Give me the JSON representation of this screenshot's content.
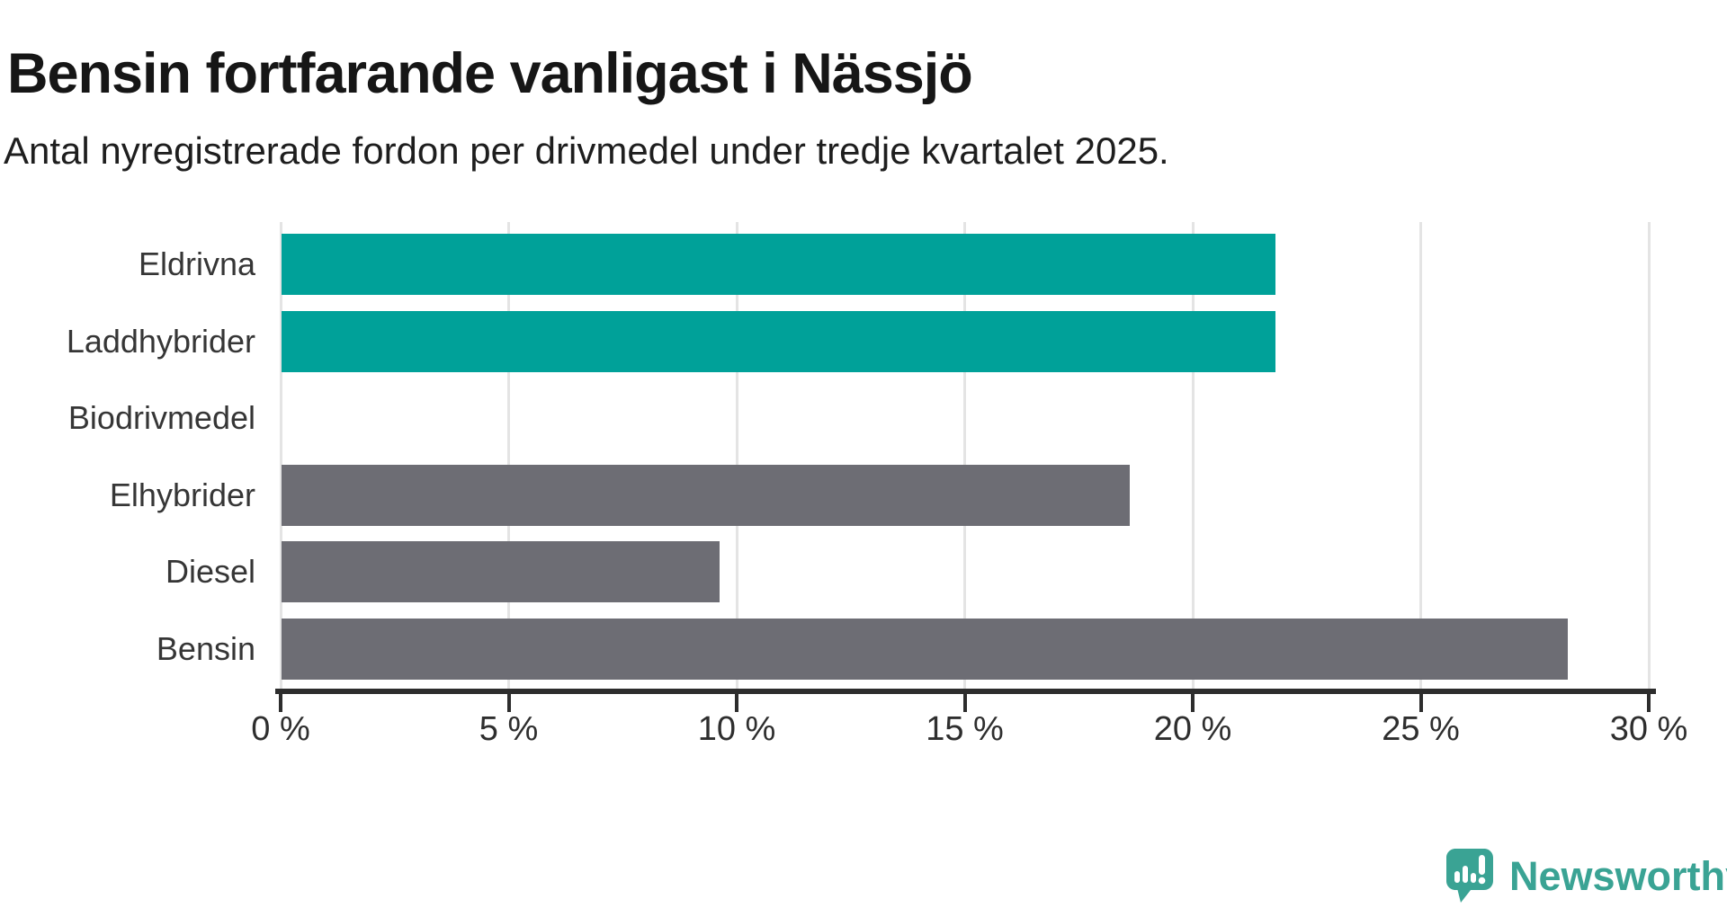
{
  "title": "Bensin fortfarande vanligast i Nässjö",
  "subtitle": "Antal nyregistrerade fordon per drivmedel under tredje kvartalet 2025.",
  "chart_data": {
    "type": "bar",
    "orientation": "horizontal",
    "title": "Bensin fortfarande vanligast i Nässjö",
    "subtitle": "Antal nyregistrerade fordon per drivmedel under tredje kvartalet 2025.",
    "categories": [
      "Eldrivna",
      "Laddhybrider",
      "Biodrivmedel",
      "Elhybrider",
      "Diesel",
      "Bensin"
    ],
    "values": [
      21.8,
      21.8,
      0,
      18.6,
      9.6,
      28.2
    ],
    "unit": "%",
    "bar_colors": [
      "#00a199",
      "#00a199",
      "#6d6d74",
      "#6d6d74",
      "#6d6d74",
      "#6d6d74"
    ],
    "x_tick_labels": [
      "0 %",
      "5 %",
      "10 %",
      "15 %",
      "20 %",
      "25 %",
      "30 %"
    ],
    "x_tick_values": [
      0,
      5,
      10,
      15,
      20,
      25,
      30
    ],
    "xlim": [
      0,
      30
    ],
    "grid": true,
    "legend": "none"
  },
  "colors": {
    "highlight_bar": "#00a199",
    "default_bar": "#6d6d74",
    "gridline": "#e4e4e4",
    "axis": "#2d2d2d",
    "logo": "#3aa394"
  },
  "branding": {
    "logo_text": "Newsworthy",
    "logo_icon": "speech-bubble-bar-chart-icon"
  }
}
